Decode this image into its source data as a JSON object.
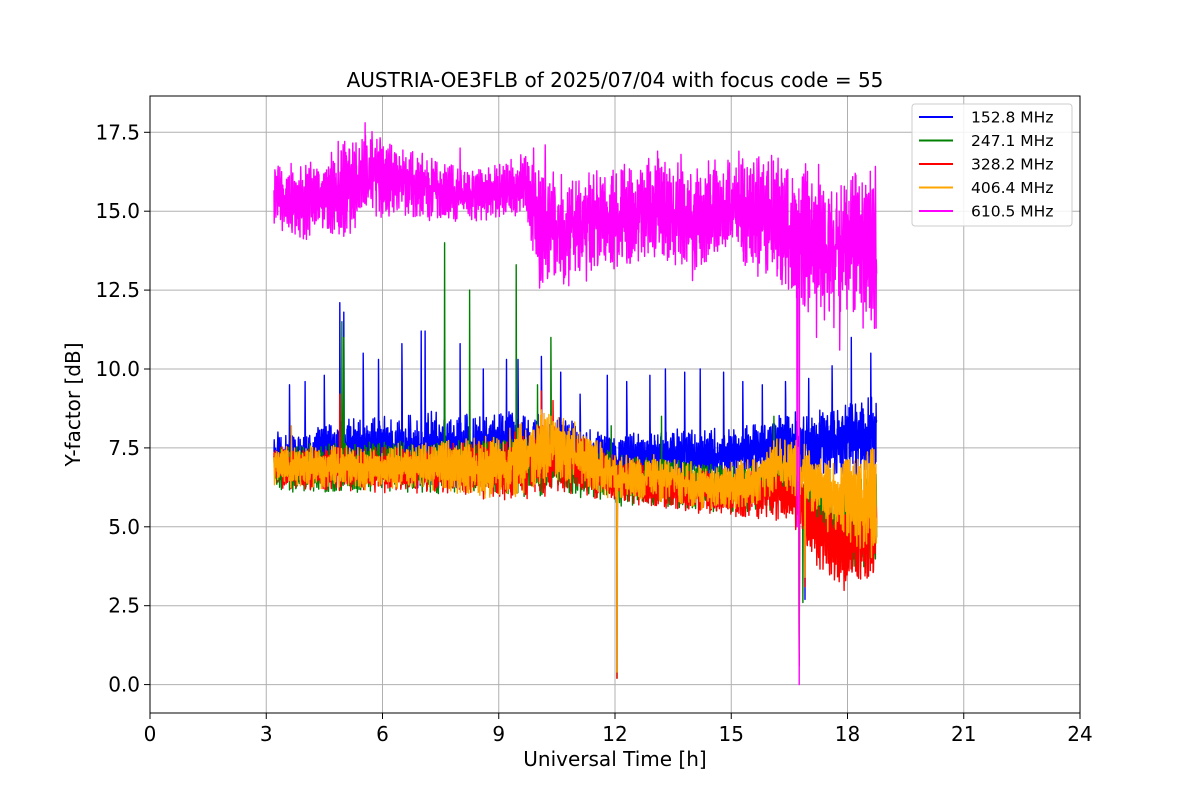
{
  "chart_data": {
    "type": "line",
    "title": "AUSTRIA-OE3FLB of 2025/07/04 with focus code = 55",
    "xlabel": "Universal Time [h]",
    "ylabel": "Y-factor [dB]",
    "xlim": [
      0,
      24
    ],
    "ylim": [
      -0.9,
      18.65
    ],
    "x_ticks": [
      "0",
      "3",
      "6",
      "9",
      "12",
      "15",
      "18",
      "21",
      "24"
    ],
    "y_ticks": [
      "0.0",
      "2.5",
      "5.0",
      "7.5",
      "10.0",
      "12.5",
      "15.0",
      "17.5"
    ],
    "grid": true,
    "legend_position": "top-right",
    "x_range_data": [
      3.2,
      18.75
    ],
    "series": [
      {
        "name": "152.8 MHz",
        "color": "#0000ff",
        "baseline": [
          [
            3.2,
            7.3
          ],
          [
            5.0,
            7.5
          ],
          [
            7.0,
            7.4
          ],
          [
            9.0,
            7.5
          ],
          [
            10.5,
            7.5
          ],
          [
            12.0,
            7.2
          ],
          [
            13.5,
            7.3
          ],
          [
            15.0,
            7.3
          ],
          [
            16.7,
            7.6
          ],
          [
            18.0,
            7.8
          ],
          [
            18.75,
            7.8
          ]
        ],
        "noise_band": [
          [
            3.2,
            0.6
          ],
          [
            5.4,
            1.2
          ],
          [
            7.0,
            1.5
          ],
          [
            10.0,
            1.4
          ],
          [
            12.0,
            0.9
          ],
          [
            15.0,
            1.0
          ],
          [
            17.2,
            1.4
          ],
          [
            18.75,
            1.6
          ]
        ],
        "spikes": [
          [
            3.3,
            8.0
          ],
          [
            3.6,
            9.5
          ],
          [
            4.0,
            9.6
          ],
          [
            4.5,
            9.8
          ],
          [
            4.9,
            12.1
          ],
          [
            5.0,
            11.8
          ],
          [
            5.5,
            10.5
          ],
          [
            5.9,
            10.3
          ],
          [
            6.5,
            10.8
          ],
          [
            7.0,
            11.2
          ],
          [
            7.1,
            11.2
          ],
          [
            7.6,
            10.6
          ],
          [
            8.0,
            10.8
          ],
          [
            8.6,
            10.0
          ],
          [
            9.2,
            10.3
          ],
          [
            9.5,
            10.3
          ],
          [
            10.1,
            10.4
          ],
          [
            10.6,
            9.9
          ],
          [
            11.1,
            9.2
          ],
          [
            11.8,
            9.8
          ],
          [
            12.3,
            9.6
          ],
          [
            12.9,
            9.8
          ],
          [
            13.3,
            10.0
          ],
          [
            13.8,
            9.9
          ],
          [
            14.2,
            10.0
          ],
          [
            14.8,
            9.9
          ],
          [
            15.3,
            9.6
          ],
          [
            15.8,
            9.5
          ],
          [
            16.4,
            9.6
          ],
          [
            17.0,
            9.7
          ],
          [
            17.6,
            10.1
          ],
          [
            18.1,
            11.0
          ],
          [
            18.6,
            10.5
          ]
        ],
        "dips": [
          [
            12.05,
            4.4
          ],
          [
            16.75,
            0.9
          ],
          [
            16.9,
            2.7
          ]
        ]
      },
      {
        "name": "247.1 MHz",
        "color": "#008000",
        "baseline": [
          [
            3.2,
            6.8
          ],
          [
            5.0,
            6.9
          ],
          [
            7.0,
            6.9
          ],
          [
            9.0,
            6.9
          ],
          [
            10.5,
            7.0
          ],
          [
            12.0,
            6.5
          ],
          [
            13.5,
            6.4
          ],
          [
            15.0,
            6.2
          ],
          [
            16.7,
            6.5
          ],
          [
            17.3,
            5.5
          ],
          [
            18.0,
            5.0
          ],
          [
            18.75,
            5.5
          ]
        ],
        "noise_band": [
          [
            3.2,
            0.9
          ],
          [
            7.0,
            1.0
          ],
          [
            10.0,
            1.2
          ],
          [
            12.0,
            1.0
          ],
          [
            15.0,
            0.9
          ],
          [
            17.0,
            1.2
          ],
          [
            18.75,
            2.2
          ]
        ],
        "spikes": [
          [
            4.95,
            11.5
          ],
          [
            5.0,
            11.0
          ],
          [
            7.6,
            14.0
          ],
          [
            8.25,
            12.5
          ],
          [
            9.45,
            13.3
          ],
          [
            10.0,
            9.5
          ],
          [
            10.35,
            11.0
          ],
          [
            11.9,
            8.2
          ],
          [
            13.2,
            8.5
          ],
          [
            16.1,
            8.5
          ]
        ],
        "dips": [
          [
            12.05,
            0.2
          ],
          [
            16.75,
            0.8
          ],
          [
            16.85,
            2.6
          ]
        ]
      },
      {
        "name": "328.2 MHz",
        "color": "#ff0000",
        "baseline": [
          [
            3.2,
            6.9
          ],
          [
            5.0,
            6.8
          ],
          [
            7.0,
            6.8
          ],
          [
            9.0,
            6.8
          ],
          [
            10.5,
            7.2
          ],
          [
            12.0,
            6.5
          ],
          [
            13.5,
            6.2
          ],
          [
            15.0,
            6.0
          ],
          [
            16.5,
            6.1
          ],
          [
            17.3,
            4.7
          ],
          [
            18.0,
            4.3
          ],
          [
            18.75,
            5.0
          ]
        ],
        "noise_band": [
          [
            3.2,
            0.8
          ],
          [
            7.0,
            0.9
          ],
          [
            10.0,
            1.4
          ],
          [
            12.0,
            0.9
          ],
          [
            15.0,
            0.8
          ],
          [
            17.3,
            1.4
          ],
          [
            18.75,
            2.2
          ]
        ],
        "spikes": [
          [
            4.9,
            9.2
          ],
          [
            10.1,
            9.3
          ],
          [
            10.4,
            9.0
          ]
        ],
        "dips": [
          [
            12.05,
            0.2
          ],
          [
            16.75,
            0.6
          ],
          [
            16.9,
            3.1
          ]
        ]
      },
      {
        "name": "406.4 MHz",
        "color": "#ffa500",
        "baseline": [
          [
            3.2,
            6.9
          ],
          [
            5.0,
            6.9
          ],
          [
            7.0,
            6.9
          ],
          [
            9.0,
            6.9
          ],
          [
            10.0,
            7.4
          ],
          [
            10.5,
            7.6
          ],
          [
            12.0,
            6.6
          ],
          [
            13.5,
            6.5
          ],
          [
            14.5,
            6.2
          ],
          [
            15.5,
            6.4
          ],
          [
            16.3,
            7.0
          ],
          [
            16.7,
            6.8
          ],
          [
            17.0,
            6.6
          ],
          [
            17.5,
            6.0
          ],
          [
            18.0,
            5.8
          ],
          [
            18.75,
            5.8
          ]
        ],
        "noise_band": [
          [
            3.2,
            0.8
          ],
          [
            7.0,
            0.9
          ],
          [
            10.0,
            1.5
          ],
          [
            12.0,
            0.9
          ],
          [
            15.0,
            0.9
          ],
          [
            17.0,
            1.2
          ],
          [
            18.75,
            2.2
          ]
        ],
        "spikes": [
          [
            3.65,
            8.2
          ],
          [
            10.1,
            8.7
          ],
          [
            10.35,
            8.5
          ]
        ],
        "dips": [
          [
            12.05,
            0.4
          ],
          [
            16.75,
            1.0
          ],
          [
            16.9,
            3.4
          ]
        ]
      },
      {
        "name": "610.5 MHz",
        "color": "#ff00ff",
        "baseline": [
          [
            3.2,
            15.5
          ],
          [
            4.0,
            15.3
          ],
          [
            5.0,
            15.7
          ],
          [
            5.5,
            16.3
          ],
          [
            6.0,
            16.0
          ],
          [
            7.0,
            15.8
          ],
          [
            8.0,
            15.5
          ],
          [
            9.0,
            15.6
          ],
          [
            9.7,
            15.9
          ],
          [
            10.0,
            14.6
          ],
          [
            10.5,
            14.3
          ],
          [
            11.0,
            14.5
          ],
          [
            12.0,
            14.8
          ],
          [
            13.0,
            15.0
          ],
          [
            14.0,
            14.8
          ],
          [
            15.0,
            15.1
          ],
          [
            16.0,
            14.8
          ],
          [
            16.6,
            14.4
          ],
          [
            17.0,
            14.2
          ],
          [
            17.5,
            13.9
          ],
          [
            18.0,
            13.8
          ],
          [
            18.75,
            14.0
          ]
        ],
        "noise_band": [
          [
            3.2,
            1.2
          ],
          [
            5.0,
            2.0
          ],
          [
            6.0,
            1.6
          ],
          [
            8.0,
            1.0
          ],
          [
            9.7,
            1.2
          ],
          [
            10.0,
            2.4
          ],
          [
            12.0,
            2.0
          ],
          [
            15.0,
            2.0
          ],
          [
            17.0,
            3.0
          ],
          [
            18.75,
            3.2
          ]
        ],
        "spikes": [
          [
            5.55,
            17.8
          ],
          [
            8.0,
            17.0
          ],
          [
            9.9,
            17.0
          ],
          [
            10.2,
            17.1
          ],
          [
            13.1,
            16.9
          ],
          [
            13.7,
            16.8
          ],
          [
            15.2,
            16.9
          ],
          [
            18.2,
            16.2
          ]
        ],
        "dips": [
          [
            10.7,
            12.9
          ],
          [
            14.0,
            12.8
          ],
          [
            16.7,
            5.0
          ],
          [
            16.75,
            0.0
          ],
          [
            17.2,
            11.0
          ],
          [
            17.8,
            10.6
          ]
        ]
      }
    ]
  }
}
